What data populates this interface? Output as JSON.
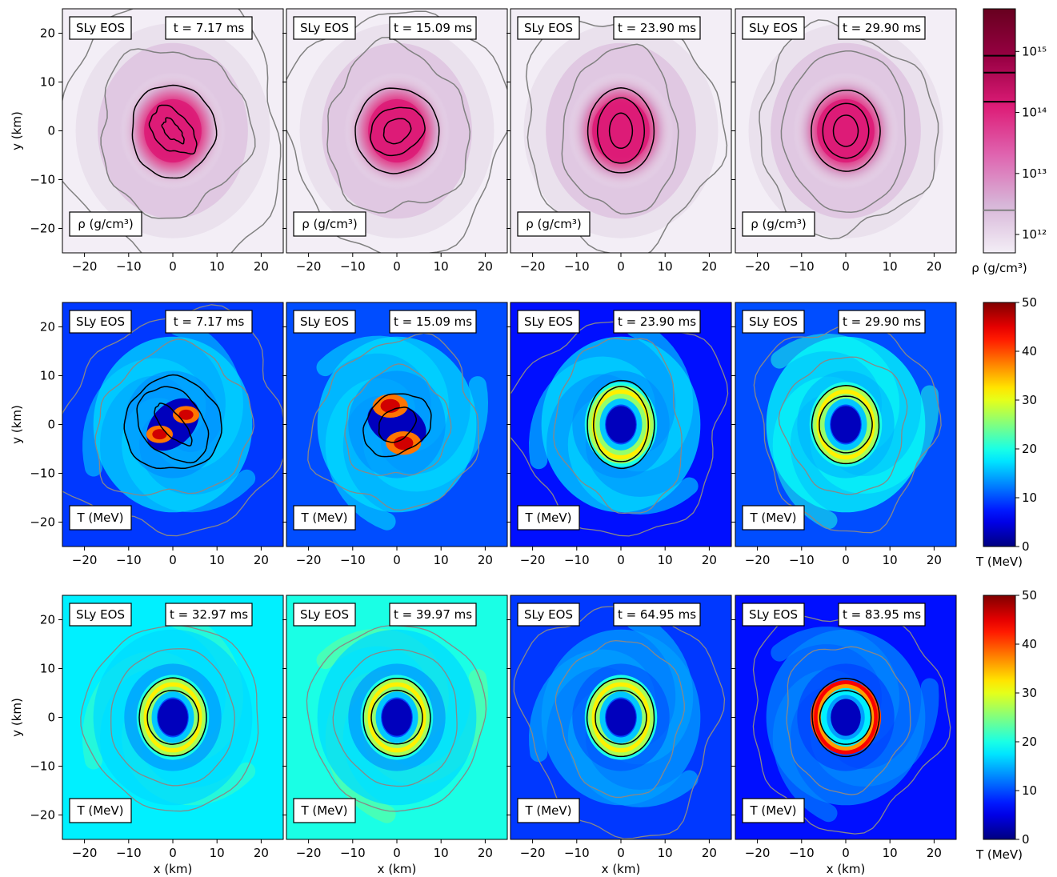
{
  "chart_data": {
    "type": "heatmap",
    "eos_label": "SLy EOS",
    "x_axis": {
      "label": "x (km)",
      "lim": [
        -25,
        25
      ],
      "ticks": [
        -20,
        -10,
        0,
        10,
        20
      ],
      "tick_labels": [
        "−20",
        "−10",
        "0",
        "10",
        "20"
      ]
    },
    "y_axis": {
      "label": "y (km)",
      "lim": [
        -25,
        25
      ],
      "ticks": [
        -20,
        -10,
        0,
        10,
        20
      ],
      "tick_labels": [
        "−20",
        "−10",
        "0",
        "10",
        "20"
      ]
    },
    "rows": [
      {
        "quantity": "density",
        "field_label": "ρ (g/cm³)",
        "colorbar": {
          "label": "ρ (g/cm³)",
          "scale": "log",
          "range": [
            500000000000.0,
            5000000000000000.0
          ],
          "ticks": [
            1000000000000.0,
            10000000000000.0,
            100000000000000.0,
            1000000000000000.0
          ],
          "tick_labels": [
            "10¹²",
            "10¹³",
            "10¹⁴",
            "10¹⁵"
          ],
          "contour_levels": [
            2500000000000.0,
            150000000000000.0,
            450000000000000.0,
            850000000000000.0
          ],
          "colors": [
            "#f3eef6",
            "#d7b5d8",
            "#df65b0",
            "#dd1c77",
            "#980043",
            "#67001f"
          ]
        },
        "panels": [
          {
            "time": "t = 7.17 ms"
          },
          {
            "time": "t = 15.09 ms"
          },
          {
            "time": "t = 23.90 ms"
          },
          {
            "time": "t = 29.90 ms"
          }
        ]
      },
      {
        "quantity": "temperature",
        "field_label": "T (MeV)",
        "colorbar": {
          "label": "T (MeV)",
          "scale": "linear",
          "range": [
            0,
            50
          ],
          "ticks": [
            0,
            10,
            20,
            30,
            40,
            50
          ],
          "tick_labels": [
            "0",
            "10",
            "20",
            "30",
            "40",
            "50"
          ],
          "colormap": "jet"
        },
        "panels": [
          {
            "time": "t = 7.17 ms"
          },
          {
            "time": "t = 15.09 ms"
          },
          {
            "time": "t = 23.90 ms"
          },
          {
            "time": "t = 29.90 ms"
          }
        ]
      },
      {
        "quantity": "temperature",
        "field_label": "T (MeV)",
        "colorbar": {
          "label": "T (MeV)",
          "scale": "linear",
          "range": [
            0,
            50
          ],
          "ticks": [
            0,
            10,
            20,
            30,
            40,
            50
          ],
          "tick_labels": [
            "0",
            "10",
            "20",
            "30",
            "40",
            "50"
          ],
          "colormap": "jet"
        },
        "panels": [
          {
            "time": "t = 32.97 ms"
          },
          {
            "time": "t = 39.97 ms"
          },
          {
            "time": "t = 64.95 ms"
          },
          {
            "time": "t = 83.95 ms"
          }
        ]
      }
    ]
  }
}
